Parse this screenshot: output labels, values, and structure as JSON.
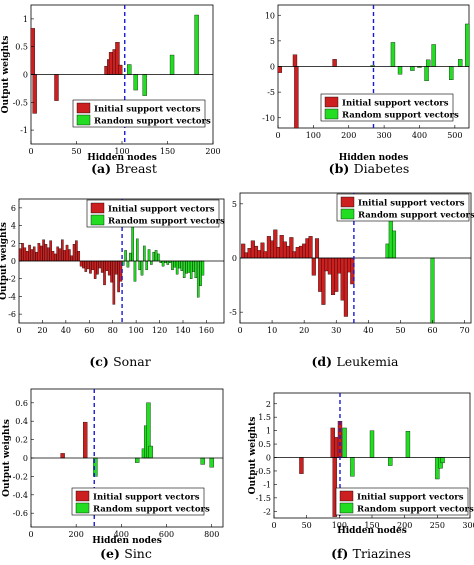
{
  "figure": {
    "captions": [
      {
        "letter": "(a)",
        "name": "Breast"
      },
      {
        "letter": "(b)",
        "name": "Diabetes"
      },
      {
        "letter": "(c)",
        "name": "Sonar"
      },
      {
        "letter": "(d)",
        "name": "Leukemia"
      },
      {
        "letter": "(e)",
        "name": "Sinc"
      },
      {
        "letter": "(f)",
        "name": "Triazines"
      }
    ],
    "colors": {
      "initial": "#cc1f1f",
      "random": "#22dd22",
      "divider": "#1a1ad6"
    }
  },
  "chart_data": [
    {
      "type": "bar",
      "panel": "a",
      "xlabel": "Hidden nodes",
      "ylabel": "Output weights",
      "xlim": [
        0,
        200
      ],
      "ylim": [
        -1.25,
        1.25
      ],
      "xticks": [
        0,
        50,
        100,
        150,
        200
      ],
      "yticks": [
        -1,
        -0.5,
        0,
        0.5,
        1
      ],
      "divider_x": 103,
      "legend_position": "bottom-right",
      "series": [
        {
          "name": "Initial support vectors",
          "x": [
            2,
            4,
            28,
            83,
            86,
            88,
            92,
            95,
            98
          ],
          "values": [
            0.83,
            -0.7,
            -0.47,
            0.15,
            0.27,
            0.4,
            0.45,
            0.58,
            0.17
          ]
        },
        {
          "name": "Random support vectors",
          "x": [
            108,
            115,
            125,
            155,
            182
          ],
          "values": [
            0.18,
            -0.28,
            -0.38,
            0.35,
            1.07
          ]
        }
      ]
    },
    {
      "type": "bar",
      "panel": "b",
      "xlabel": "Hidden nodes",
      "ylabel": "",
      "xlim": [
        0,
        540
      ],
      "ylim": [
        -12,
        12
      ],
      "xticks": [
        0,
        100,
        200,
        300,
        400,
        500
      ],
      "yticks": [
        -10,
        -5,
        0,
        5,
        10
      ],
      "divider_x": 270,
      "legend_position": "bottom-right",
      "series": [
        {
          "name": "Initial support vectors",
          "x": [
            5,
            48,
            52,
            160
          ],
          "values": [
            -1.2,
            2.3,
            -12,
            1.4
          ]
        },
        {
          "name": "Random support vectors",
          "x": [
            268,
            325,
            345,
            380,
            400,
            420,
            425,
            440,
            490,
            515,
            535
          ],
          "values": [
            0.2,
            4.7,
            -1.5,
            -0.8,
            -0.2,
            -2.8,
            1.3,
            4.3,
            -2.6,
            1.4,
            8.3
          ]
        }
      ]
    },
    {
      "type": "bar",
      "panel": "c",
      "xlabel": "",
      "ylabel": "Output weights",
      "xlim": [
        0,
        175
      ],
      "ylim": [
        -7,
        7
      ],
      "xticks": [
        0,
        20,
        40,
        60,
        80,
        100,
        120,
        140,
        160
      ],
      "yticks": [
        -6,
        -4,
        -2,
        0,
        2,
        4,
        6
      ],
      "divider_x": 88,
      "legend_position": "top-right",
      "series": [
        {
          "name": "Initial support vectors",
          "x": [
            1,
            3,
            5,
            7,
            9,
            11,
            13,
            15,
            17,
            19,
            21,
            23,
            25,
            27,
            29,
            31,
            33,
            35,
            37,
            39,
            41,
            43,
            45,
            47,
            49,
            51,
            53,
            55,
            57,
            59,
            61,
            63,
            65,
            67,
            69,
            71,
            73,
            75,
            77,
            79,
            81,
            83,
            85,
            87
          ],
          "values": [
            1.4,
            2.0,
            1.5,
            1.1,
            1.8,
            1.3,
            1.6,
            1.0,
            2.0,
            1.7,
            2.4,
            1.9,
            1.5,
            2.3,
            1.1,
            0.8,
            1.6,
            1.4,
            2.4,
            1.2,
            1.8,
            1.3,
            0.6,
            1.9,
            2.3,
            1.1,
            -0.6,
            -0.8,
            -1.2,
            -0.9,
            -1.4,
            -1.0,
            -2.0,
            -1.5,
            -0.8,
            -1.3,
            -2.7,
            -1.1,
            -1.6,
            -2.4,
            -4.9,
            -1.5,
            -3.5,
            -2.3
          ]
        },
        {
          "name": "Random support vectors",
          "x": [
            89,
            91,
            93,
            95,
            97,
            99,
            101,
            103,
            105,
            107,
            109,
            111,
            113,
            115,
            117,
            119,
            121,
            123,
            125,
            127,
            129,
            131,
            133,
            135,
            137,
            139,
            141,
            143,
            145,
            147,
            149,
            151,
            153,
            155,
            157
          ],
          "values": [
            -0.5,
            1.2,
            -0.7,
            0.9,
            4.0,
            -2.3,
            2.5,
            -1.0,
            -1.6,
            1.7,
            -1.0,
            1.3,
            -0.4,
            1.0,
            1.2,
            0.8,
            -0.2,
            -0.6,
            -0.2,
            -0.4,
            -0.2,
            -1.0,
            -0.7,
            -1.5,
            -0.8,
            -1.1,
            -1.9,
            -1.4,
            -1.3,
            -2.0,
            -1.2,
            -1.9,
            -4.1,
            -2.8,
            -1.6
          ]
        }
      ]
    },
    {
      "type": "bar",
      "panel": "d",
      "xlabel": "",
      "ylabel": "",
      "xlim": [
        0,
        72
      ],
      "ylim": [
        -6,
        6
      ],
      "xticks": [
        0,
        10,
        20,
        30,
        40,
        50,
        60,
        70
      ],
      "yticks": [
        -5,
        0,
        5
      ],
      "divider_x": 35.5,
      "legend_position": "top-right",
      "series": [
        {
          "name": "Initial support vectors",
          "x": [
            1,
            2,
            3,
            4,
            5,
            6,
            7,
            8,
            9,
            10,
            11,
            12,
            13,
            14,
            15,
            16,
            17,
            18,
            19,
            20,
            21,
            22,
            23,
            24,
            25,
            26,
            27,
            28,
            29,
            30,
            31,
            32,
            33,
            34,
            35
          ],
          "values": [
            1.3,
            0.5,
            0.9,
            1.6,
            1.1,
            0.7,
            1.4,
            0.6,
            2.0,
            1.6,
            2.6,
            1.0,
            2.1,
            1.5,
            1.1,
            1.9,
            0.6,
            1.0,
            1.1,
            1.3,
            1.8,
            2.0,
            -1.6,
            1.8,
            -3.1,
            -4.3,
            -1.2,
            -1.5,
            -3.4,
            -3.1,
            -1.4,
            -3.9,
            -5.4,
            -1.3,
            -2.4
          ]
        },
        {
          "name": "Random support vectors",
          "x": [
            46,
            47,
            48,
            60
          ],
          "values": [
            1.3,
            3.5,
            2.5,
            -6.0
          ]
        }
      ]
    },
    {
      "type": "bar",
      "panel": "e",
      "xlabel": "Hidden nodes",
      "ylabel": "Output weights",
      "xlim": [
        0,
        850
      ],
      "ylim": [
        -0.75,
        0.75
      ],
      "xticks": [
        0,
        200,
        400,
        600,
        800
      ],
      "yticks": [
        -0.6,
        -0.4,
        -0.2,
        0,
        0.2,
        0.4,
        0.6
      ],
      "divider_x": 280,
      "legend_position": "bottom-right",
      "series": [
        {
          "name": "Initial support vectors",
          "x": [
            140,
            240
          ],
          "values": [
            0.05,
            0.39
          ]
        },
        {
          "name": "Random support vectors",
          "x": [
            285,
            470,
            500,
            510,
            520,
            530,
            760,
            800
          ],
          "values": [
            -0.2,
            -0.05,
            0.1,
            0.35,
            0.6,
            0.13,
            -0.07,
            -0.1
          ]
        }
      ]
    },
    {
      "type": "bar",
      "panel": "f",
      "xlabel": "Hidden nodes",
      "ylabel": "Output weights",
      "xlim": [
        0,
        300
      ],
      "ylim": [
        -2.25,
        2.4
      ],
      "xticks": [
        0,
        50,
        100,
        150,
        200,
        250,
        300
      ],
      "yticks": [
        -2,
        -1.5,
        -1,
        -0.5,
        0,
        0.5,
        1,
        1.5,
        2
      ],
      "divider_x": 101,
      "legend_position": "bottom-right",
      "series": [
        {
          "name": "Initial support vectors",
          "x": [
            42,
            90,
            93,
            96,
            101
          ],
          "values": [
            -0.6,
            1.1,
            -2.2,
            0.75,
            1.35
          ]
        },
        {
          "name": "Random support vectors",
          "x": [
            108,
            120,
            150,
            178,
            205,
            250,
            255,
            258
          ],
          "values": [
            1.1,
            -0.7,
            1.0,
            -0.3,
            0.98,
            -0.8,
            -0.4,
            -0.2
          ]
        }
      ]
    }
  ]
}
